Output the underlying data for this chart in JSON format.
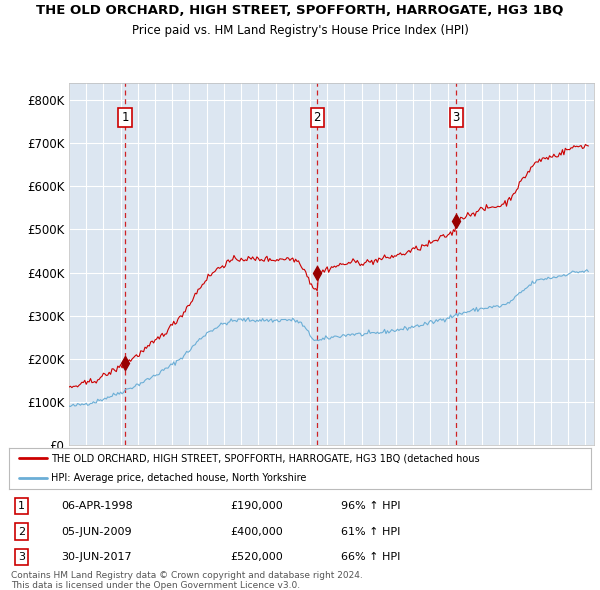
{
  "title": "THE OLD ORCHARD, HIGH STREET, SPOFFORTH, HARROGATE, HG3 1BQ",
  "subtitle": "Price paid vs. HM Land Registry's House Price Index (HPI)",
  "ytick_labels": [
    "£0",
    "£100K",
    "£200K",
    "£300K",
    "£400K",
    "£500K",
    "£600K",
    "£700K",
    "£800K"
  ],
  "yticks": [
    0,
    100000,
    200000,
    300000,
    400000,
    500000,
    600000,
    700000,
    800000
  ],
  "ylim": [
    0,
    840000
  ],
  "xlim_start": 1995.0,
  "xlim_end": 2025.5,
  "sale_dates_decimal": [
    1998.265,
    2009.425,
    2017.495
  ],
  "sale_prices": [
    190000,
    400000,
    520000
  ],
  "sale_labels": [
    "1",
    "2",
    "3"
  ],
  "sale_info": [
    {
      "label": "1",
      "date": "06-APR-1998",
      "price": "£190,000",
      "hpi": "96% ↑ HPI"
    },
    {
      "label": "2",
      "date": "05-JUN-2009",
      "price": "£400,000",
      "hpi": "61% ↑ HPI"
    },
    {
      "label": "3",
      "date": "30-JUN-2017",
      "price": "£520,000",
      "hpi": "66% ↑ HPI"
    }
  ],
  "legend_line1": "THE OLD ORCHARD, HIGH STREET, SPOFFORTH, HARROGATE, HG3 1BQ (detached hous",
  "legend_line2": "HPI: Average price, detached house, North Yorkshire",
  "footer1": "Contains HM Land Registry data © Crown copyright and database right 2024.",
  "footer2": "This data is licensed under the Open Government Licence v3.0.",
  "red_line_color": "#cc0000",
  "blue_line_color": "#6baed6",
  "bg_color": "#dce6f1",
  "grid_color": "#ffffff",
  "vline_color": "#cc0000",
  "box_edge_color": "#cc0000",
  "marker_color": "#990000"
}
